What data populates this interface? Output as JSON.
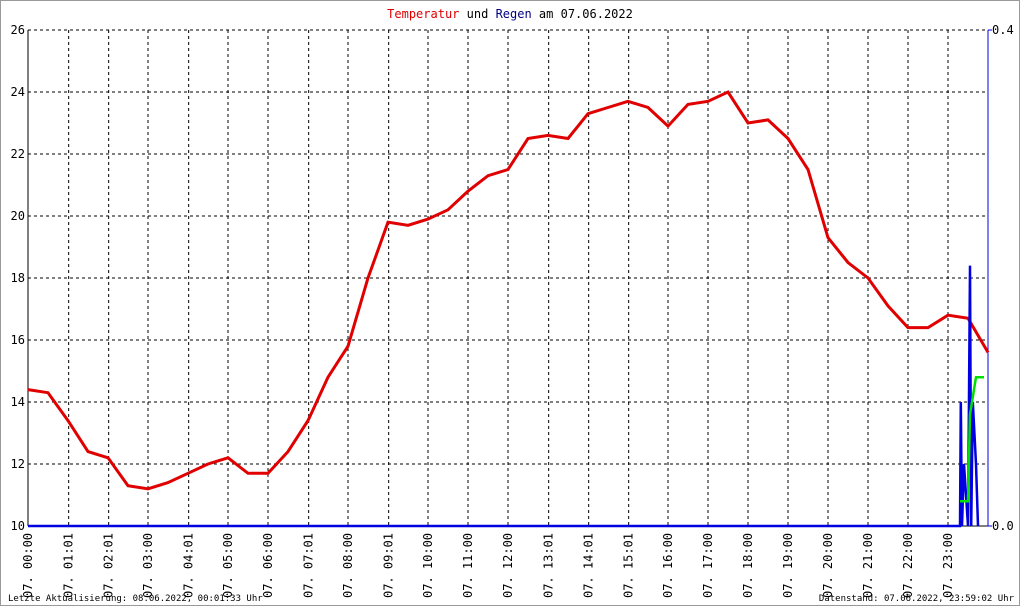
{
  "chart_data": {
    "type": "line",
    "title": [
      "Temperatur",
      "und",
      "Regen",
      "am 07.06.2022"
    ],
    "title_colors": [
      "#e00000",
      "#000000",
      "#000080",
      "#000000"
    ],
    "footer_left": "Letzte Aktualisierung: 08.06.2022, 00:01:33 Uhr",
    "footer_right": "Datenstand: 07.06.2022, 23:59:02 Uhr",
    "xlim": [
      0,
      24
    ],
    "xticks": [
      {
        "value": 0,
        "label": "07. 00:00"
      },
      {
        "value": 1.0167,
        "label": "07. 01:01"
      },
      {
        "value": 2.0167,
        "label": "07. 02:01"
      },
      {
        "value": 3,
        "label": "07. 03:00"
      },
      {
        "value": 4.0167,
        "label": "07. 04:01"
      },
      {
        "value": 5,
        "label": "07. 05:00"
      },
      {
        "value": 6,
        "label": "07. 06:00"
      },
      {
        "value": 7.0167,
        "label": "07. 07:01"
      },
      {
        "value": 8,
        "label": "07. 08:00"
      },
      {
        "value": 9.0167,
        "label": "07. 09:01"
      },
      {
        "value": 10,
        "label": "07. 10:00"
      },
      {
        "value": 11,
        "label": "07. 11:00"
      },
      {
        "value": 12,
        "label": "07. 12:00"
      },
      {
        "value": 13.0167,
        "label": "07. 13:01"
      },
      {
        "value": 14.0167,
        "label": "07. 14:01"
      },
      {
        "value": 15.0167,
        "label": "07. 15:01"
      },
      {
        "value": 16,
        "label": "07. 16:00"
      },
      {
        "value": 17,
        "label": "07. 17:00"
      },
      {
        "value": 18,
        "label": "07. 18:00"
      },
      {
        "value": 19,
        "label": "07. 19:00"
      },
      {
        "value": 20,
        "label": "07. 20:00"
      },
      {
        "value": 21,
        "label": "07. 21:00"
      },
      {
        "value": 22,
        "label": "07. 22:00"
      },
      {
        "value": 23,
        "label": "07. 23:00"
      }
    ],
    "ylim": [
      10,
      26
    ],
    "yticks": [
      10,
      12,
      14,
      16,
      18,
      20,
      22,
      24,
      26
    ],
    "y2lim": [
      0,
      0.4
    ],
    "y2ticks": [
      {
        "value": 0,
        "label": "0.0"
      },
      {
        "value": 0.4,
        "label": "0.4"
      }
    ],
    "grid": true,
    "series": [
      {
        "color": "#e00000",
        "x": [
          0,
          0.5,
          1,
          1.5,
          2,
          2.5,
          3,
          3.5,
          4,
          4.5,
          5,
          5.5,
          6,
          6.5,
          7,
          7.5,
          8,
          8.5,
          9,
          9.5,
          10,
          10.5,
          11,
          11.5,
          12,
          12.5,
          13,
          13.5,
          14,
          14.5,
          15,
          15.5,
          16,
          16.5,
          17,
          17.5,
          18,
          18.5,
          19,
          19.5,
          20,
          20.5,
          21,
          21.5,
          22,
          22.5,
          23,
          23.5,
          24
        ],
        "values": [
          14.4,
          14.3,
          13.4,
          12.4,
          12.2,
          11.3,
          11.2,
          11.4,
          11.7,
          12.0,
          12.2,
          11.7,
          11.7,
          12.4,
          13.4,
          14.8,
          15.8,
          18.0,
          19.8,
          19.7,
          19.9,
          20.2,
          20.8,
          21.3,
          21.5,
          22.5,
          22.6,
          22.5,
          23.3,
          23.5,
          23.7,
          23.5,
          22.9,
          23.6,
          23.7,
          24.0,
          23.0,
          23.1,
          22.5,
          21.5,
          19.3,
          18.5,
          18.0,
          17.1,
          16.4,
          16.4,
          16.8,
          16.7,
          15.6
        ]
      },
      {
        "color": "#0000e0",
        "axis": "y2",
        "x": [
          0,
          23.3,
          23.32,
          23.35,
          23.4,
          23.5,
          23.55,
          23.58,
          23.62,
          23.7,
          23.75
        ],
        "values": [
          0,
          0,
          0.1,
          0,
          0.05,
          0,
          0.21,
          0,
          0.1,
          0.05,
          0
        ]
      },
      {
        "color": "#00e000",
        "axis": "y2",
        "x": [
          23.3,
          23.5,
          23.55,
          23.7,
          23.9
        ],
        "values": [
          0.02,
          0.02,
          0.09,
          0.12,
          0.12
        ]
      }
    ]
  }
}
